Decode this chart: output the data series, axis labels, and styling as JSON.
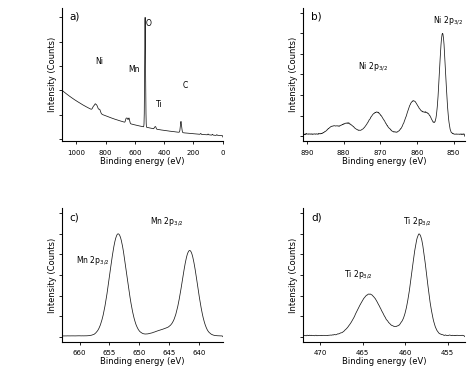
{
  "panel_labels": [
    "a)",
    "b)",
    "c)",
    "d)"
  ],
  "xlabel": "Binding energy (eV)",
  "ylabel": "Intensity (Counts)",
  "background_color": "#ffffff",
  "line_color": "#1a1a1a"
}
